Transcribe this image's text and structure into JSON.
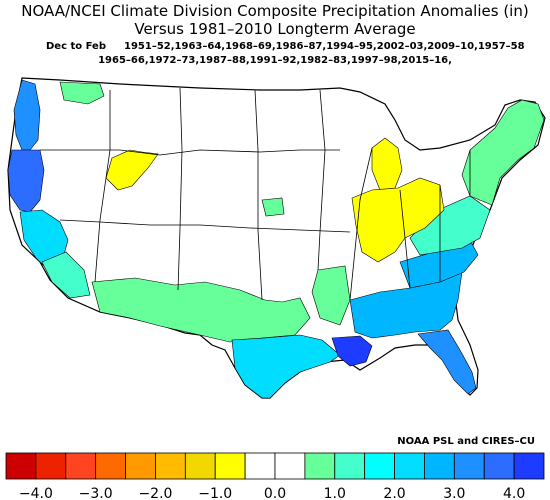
{
  "title": {
    "line1": "NOAA/NCEI Climate Division Composite Precipitation Anomalies (in)",
    "line2": "Versus 1981–2010 Longterm Average"
  },
  "subtitle": {
    "season": "Dec to Feb",
    "years_line1": "1951–52,1963–64,1968–69,1986–87,1994–95,2002–03,2009–10,1957–58",
    "years_line2": "1965–66,1972–73,1987–88,1991–92,1982–83,1997–98,2015–16,"
  },
  "credit": "NOAA PSL and CIRES–CU",
  "colorbar": {
    "colors": [
      "#cc0000",
      "#ee2200",
      "#ff4422",
      "#ff6a00",
      "#ff9900",
      "#ffbb00",
      "#f0d800",
      "#ffff00",
      "#ffffff",
      "#ffffff",
      "#66ff99",
      "#44ffcc",
      "#00ffff",
      "#00ddff",
      "#00b7ff",
      "#1e90ff",
      "#2c6cff",
      "#1e3cff"
    ],
    "ticks": [
      {
        "label": "−4.0",
        "value": -4.0
      },
      {
        "label": "−3.0",
        "value": -3.0
      },
      {
        "label": "−2.0",
        "value": -2.0
      },
      {
        "label": "−1.0",
        "value": -1.0
      },
      {
        "label": "0.0",
        "value": 0.0
      },
      {
        "label": "1.0",
        "value": 1.0
      },
      {
        "label": "2.0",
        "value": 2.0
      },
      {
        "label": "3.0",
        "value": 3.0
      },
      {
        "label": "4.0",
        "value": 4.0
      }
    ]
  },
  "regions": [
    {
      "name": "pacific-northwest-coast",
      "color": "#1e90ff"
    },
    {
      "name": "northern-california-coast",
      "color": "#2c6cff"
    },
    {
      "name": "california-interior",
      "color": "#00ddff"
    },
    {
      "name": "southern-california",
      "color": "#44ffcc"
    },
    {
      "name": "southwest",
      "color": "#66ff99"
    },
    {
      "name": "texas-gulf",
      "color": "#00ddff"
    },
    {
      "name": "louisiana",
      "color": "#1e3cff"
    },
    {
      "name": "southeast",
      "color": "#00b7ff"
    },
    {
      "name": "florida",
      "color": "#1e90ff"
    },
    {
      "name": "mid-atlantic",
      "color": "#44ffcc"
    },
    {
      "name": "northeast",
      "color": "#66ff99"
    },
    {
      "name": "ohio-valley",
      "color": "#ffff00"
    },
    {
      "name": "michigan",
      "color": "#ffff00"
    },
    {
      "name": "idaho-wyoming",
      "color": "#ffff00"
    },
    {
      "name": "nebraska",
      "color": "#66ff99"
    },
    {
      "name": "montana-north",
      "color": "#66ff99"
    },
    {
      "name": "arkansas",
      "color": "#66ff99"
    },
    {
      "name": "georgia-carolinas",
      "color": "#00b7ff"
    }
  ]
}
